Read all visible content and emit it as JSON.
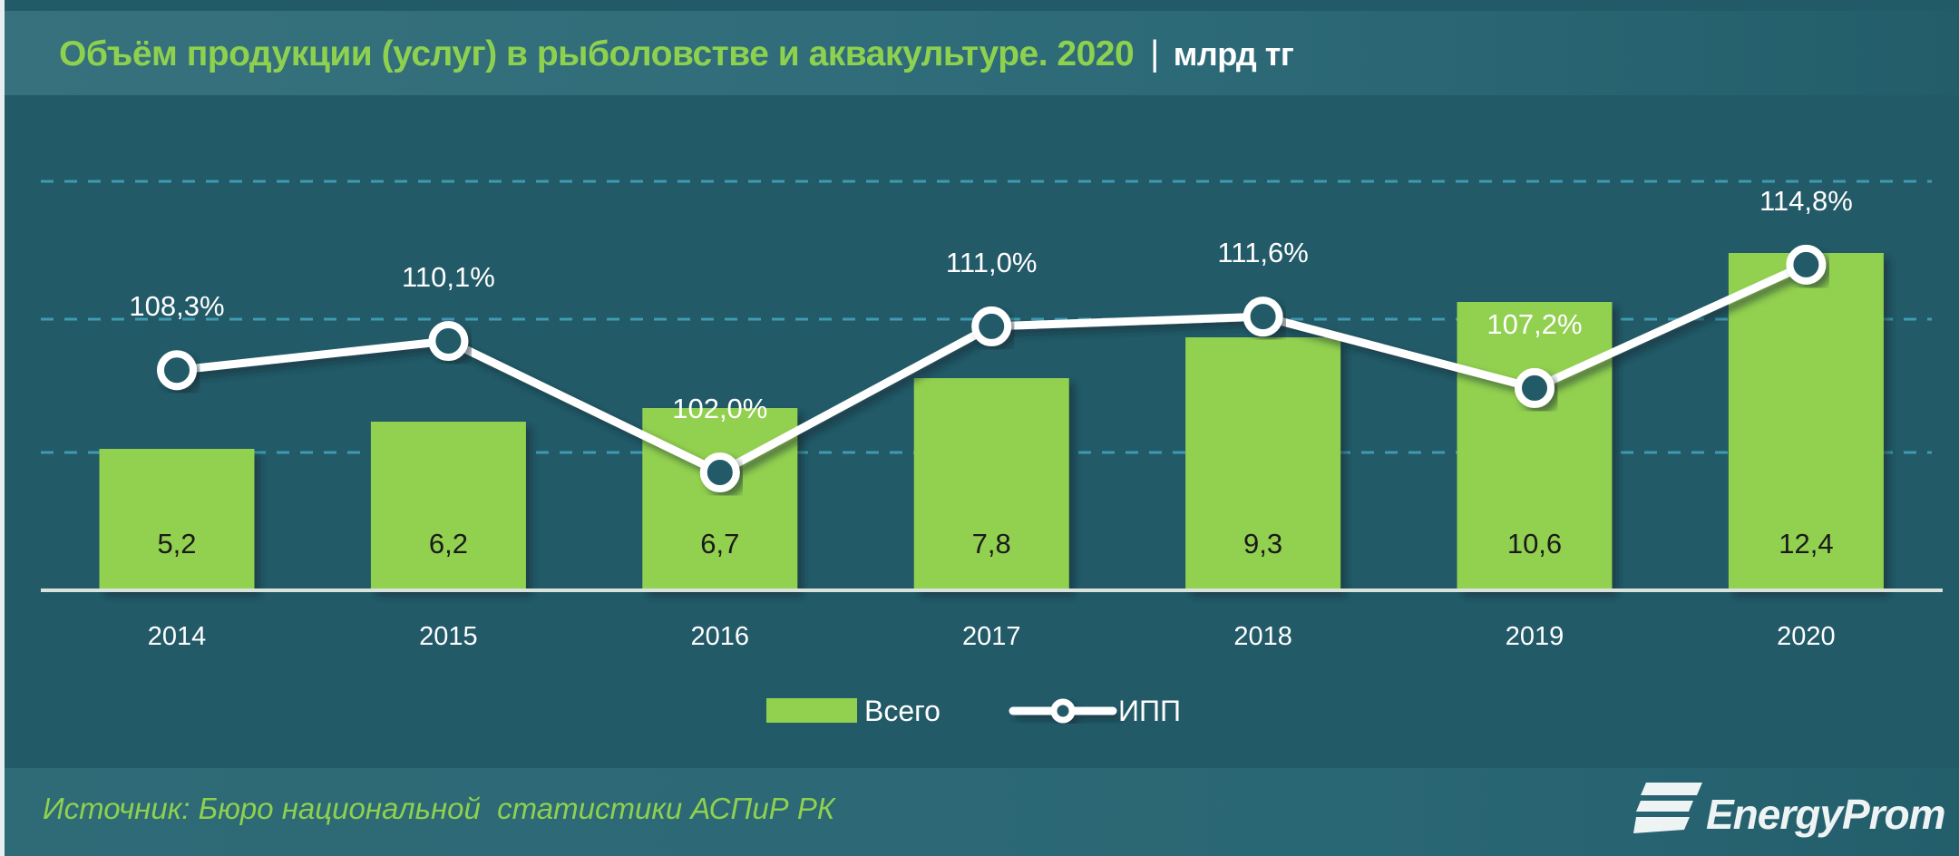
{
  "header": {
    "title": "Объём продукции (услуг) в рыболовстве и аквакультуре. 2020",
    "separator": "|",
    "unit": "млрд тг"
  },
  "footer": {
    "source": "Источник: Бюро национальной  статистики АСПиР РК",
    "logo_text": "EnergyProm",
    "logo_icon": "energyprom-stripes-icon"
  },
  "colors": {
    "background": "#225a68",
    "title_bar": "#336e7b",
    "accent_green": "#8ed14f",
    "bar": "#92d050",
    "line": "#ffffff",
    "gridline": "#3e9bb0",
    "axis": "#d9e2dc",
    "bar_label": "#1a1a1a"
  },
  "chart_data": {
    "type": "bar+line",
    "title": "Объём продукции (услуг) в рыболовстве и аквакультуре. 2020",
    "unit": "млрд тг",
    "categories": [
      "2014",
      "2015",
      "2016",
      "2017",
      "2018",
      "2019",
      "2020"
    ],
    "series": [
      {
        "name": "Всего",
        "type": "bar",
        "axis": "primary",
        "values": [
          5.2,
          6.2,
          6.7,
          7.8,
          9.3,
          10.6,
          12.4
        ],
        "labels": [
          "5,2",
          "6,2",
          "6,7",
          "7,8",
          "9,3",
          "10,6",
          "12,4"
        ]
      },
      {
        "name": "ИПП",
        "type": "line",
        "axis": "secondary",
        "values": [
          108.3,
          110.1,
          102.0,
          111.0,
          111.6,
          107.2,
          114.8
        ],
        "labels": [
          "108,3%",
          "110,1%",
          "102,0%",
          "111,0%",
          "111,6%",
          "107,2%",
          "114,8%"
        ]
      }
    ],
    "xlabel": "",
    "ylabel": "",
    "legend": {
      "position": "bottom",
      "entries": [
        "Всего",
        "ИПП"
      ]
    },
    "grid": {
      "horizontal": true,
      "style": "dashed",
      "count": 3
    },
    "axes_visible": false
  }
}
